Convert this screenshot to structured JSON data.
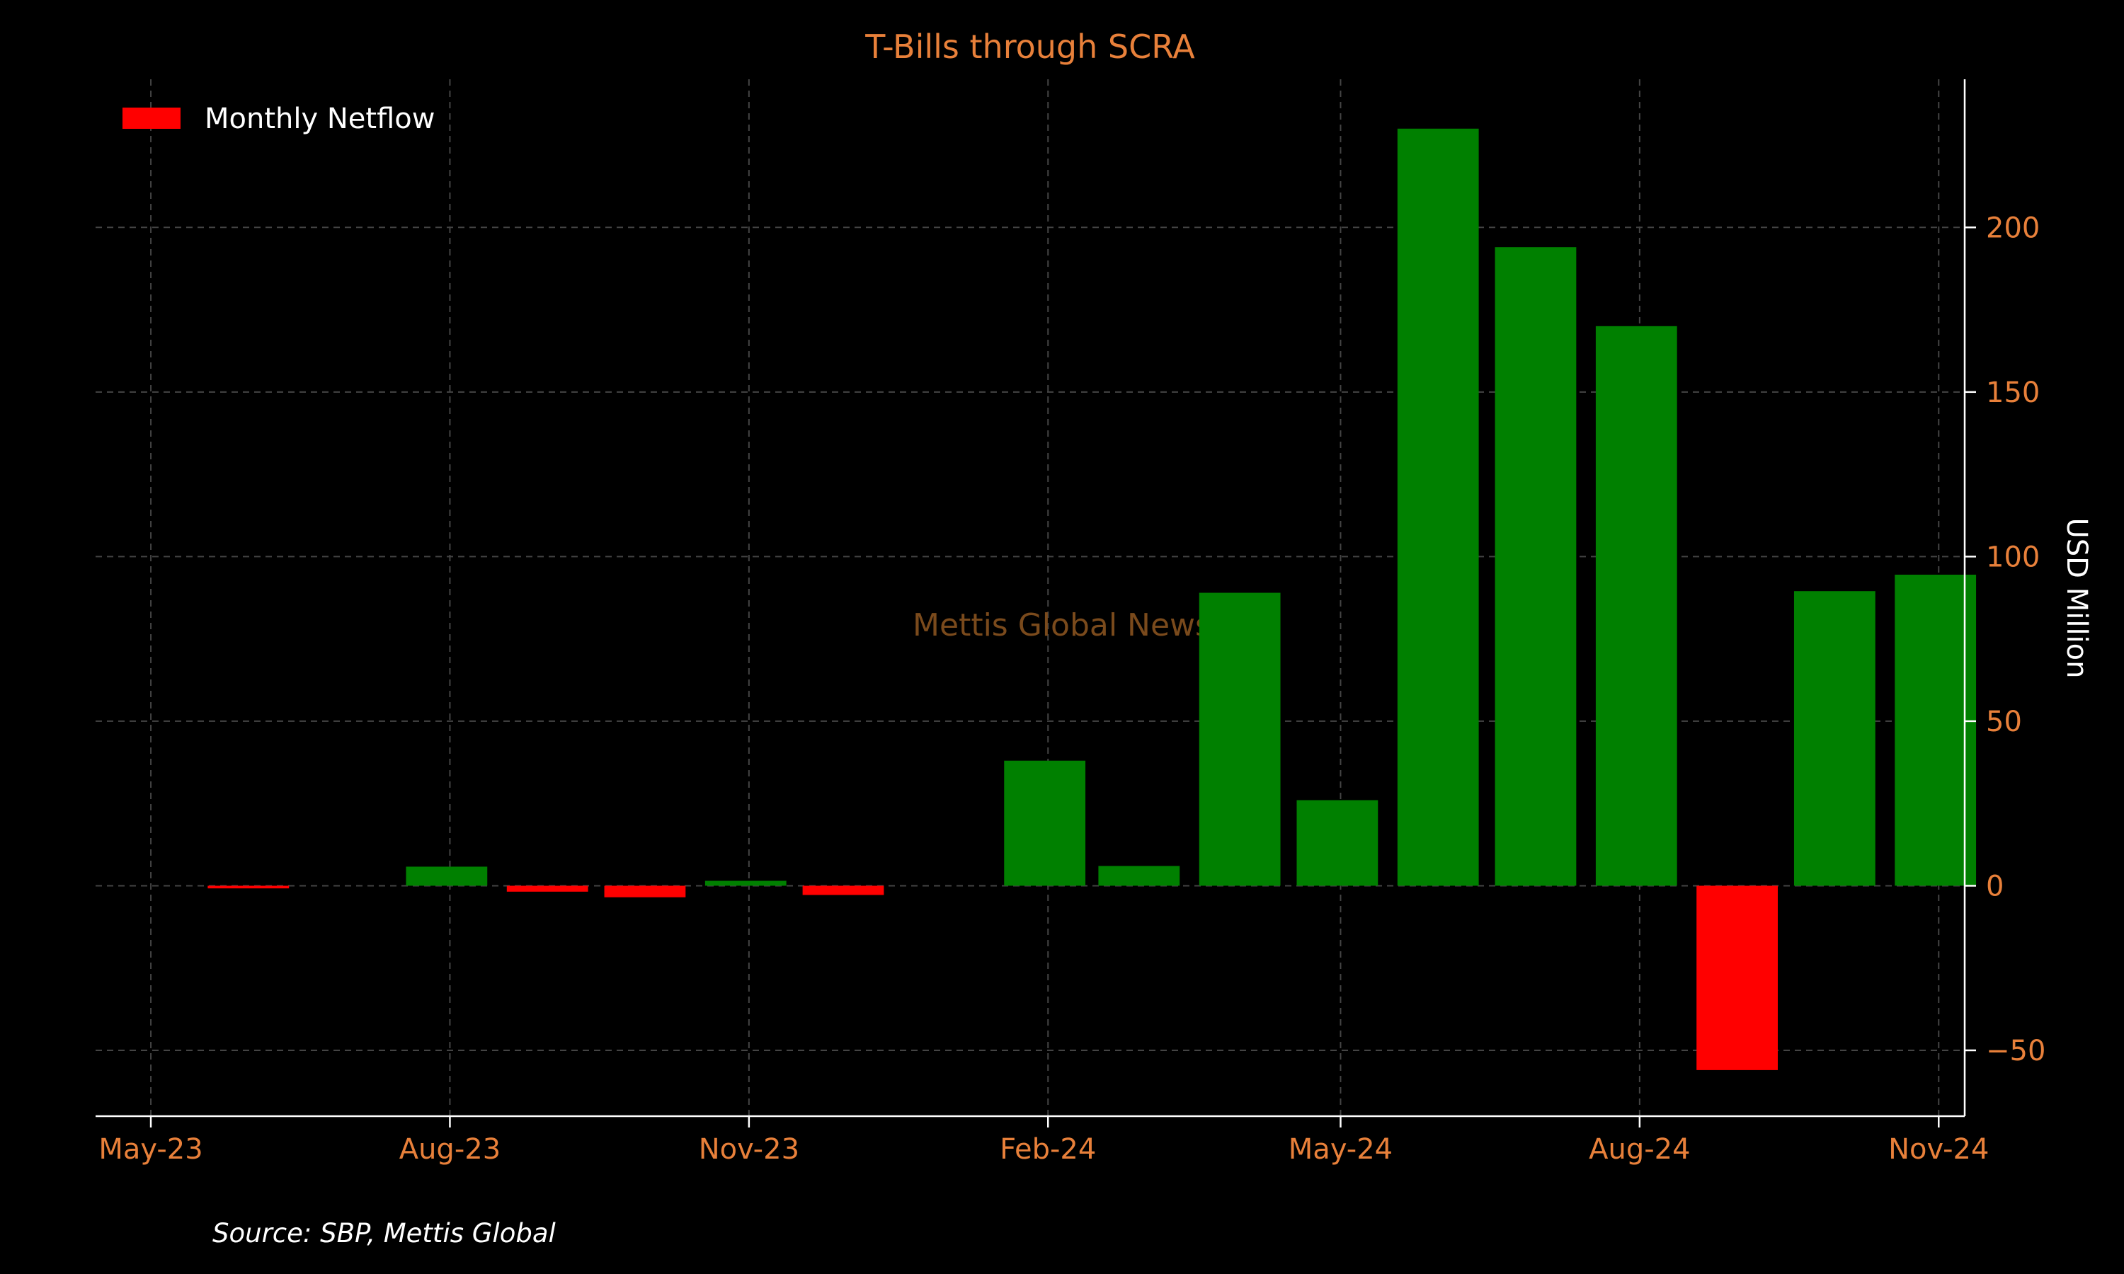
{
  "chart_data": {
    "type": "bar",
    "title": "T-Bills through SCRA",
    "ylabel": "USD Million",
    "xlabel": "",
    "legend": {
      "label": "Monthly Netflow",
      "position": "top-left",
      "color": "#ff0000"
    },
    "source": "Source: SBP, Mettis Global",
    "watermark": "Mettis Global News",
    "ylim": [
      -70,
      245
    ],
    "yticks": [
      -50,
      0,
      50,
      100,
      150,
      200
    ],
    "xticks": [
      "May-23",
      "Aug-23",
      "Nov-23",
      "Feb-24",
      "May-24",
      "Aug-24",
      "Nov-24"
    ],
    "xtick_dates": [
      "2023-05-01",
      "2023-08-01",
      "2023-11-01",
      "2024-02-01",
      "2024-05-01",
      "2024-08-01",
      "2024-11-01"
    ],
    "xlim": [
      "2023-04-14",
      "2024-11-09"
    ],
    "y_axis_side": "right",
    "grid": true,
    "categories": [
      "2023-05-31",
      "2023-06-30",
      "2023-07-31",
      "2023-08-31",
      "2023-09-30",
      "2023-10-31",
      "2023-11-30",
      "2023-12-31",
      "2024-01-31",
      "2024-02-29",
      "2024-03-31",
      "2024-04-30",
      "2024-05-31",
      "2024-06-30",
      "2024-07-31",
      "2024-08-31",
      "2024-09-30",
      "2024-10-31"
    ],
    "values": [
      -0.8,
      0,
      5.8,
      -1.8,
      -3.5,
      1.5,
      -2.8,
      0,
      38,
      6,
      89,
      26,
      230,
      194,
      170,
      -56,
      89.5,
      94.5
    ],
    "colors": {
      "positive": "#008000",
      "negative": "#ff0000",
      "title": "#e8803a",
      "ticks": "#e8803a",
      "axis": "#ffffff",
      "grid": "#444444",
      "watermark": "#7a4a1c"
    }
  }
}
